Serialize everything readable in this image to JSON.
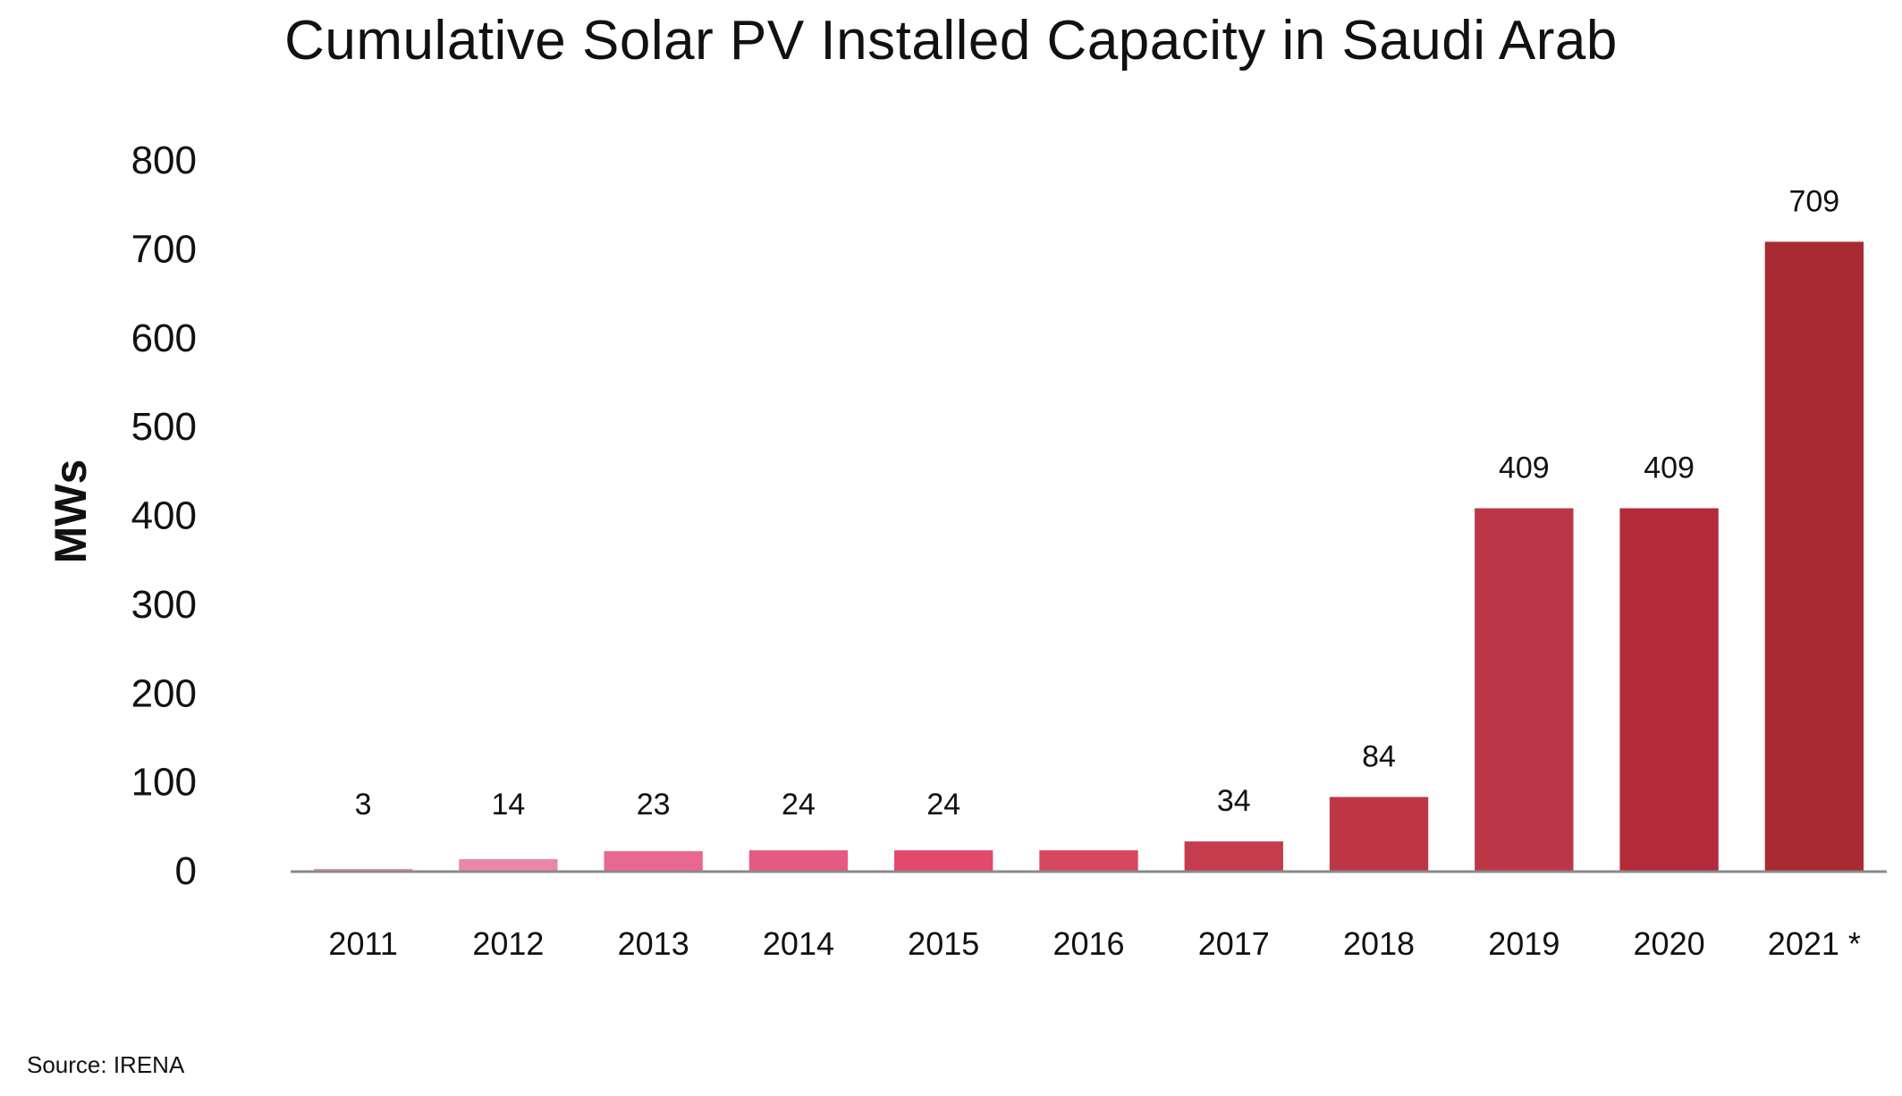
{
  "title": "Cumulative Solar PV Installed Capacity in Saudi Arab",
  "source": "Source: IRENA",
  "chart_data": {
    "type": "bar",
    "title": "Cumulative Solar PV Installed Capacity in Saudi Arab",
    "xlabel": "",
    "ylabel": "MWs",
    "categories": [
      "2011",
      "2012",
      "2013",
      "2014",
      "2015",
      "2016",
      "2017",
      "2018",
      "2019",
      "2020",
      "2021"
    ],
    "category_labels": [
      "2011",
      "2012",
      "2013",
      "2014",
      "2015",
      "2016",
      "2017",
      "2018",
      "2019",
      "2020",
      "2021  *"
    ],
    "values": [
      3,
      14,
      23,
      24,
      24,
      24,
      34,
      84,
      409,
      409,
      709
    ],
    "data_labels": [
      "3",
      "14",
      "23",
      "24",
      "24",
      "",
      "34",
      "84",
      "409",
      "409",
      "709"
    ],
    "ylim": [
      0,
      800
    ],
    "yticks": [
      0,
      100,
      200,
      300,
      400,
      500,
      600,
      700,
      800
    ],
    "grid": false,
    "legend": "none",
    "bar_colors": [
      "#ef8fb0",
      "#ec86a8",
      "#e9688f",
      "#e55a80",
      "#e2496a",
      "#d6485e",
      "#c53c4c",
      "#bd3646",
      "#bb3747",
      "#b32a3a",
      "#a92a33"
    ],
    "axis_color": "#8a8a8a"
  }
}
